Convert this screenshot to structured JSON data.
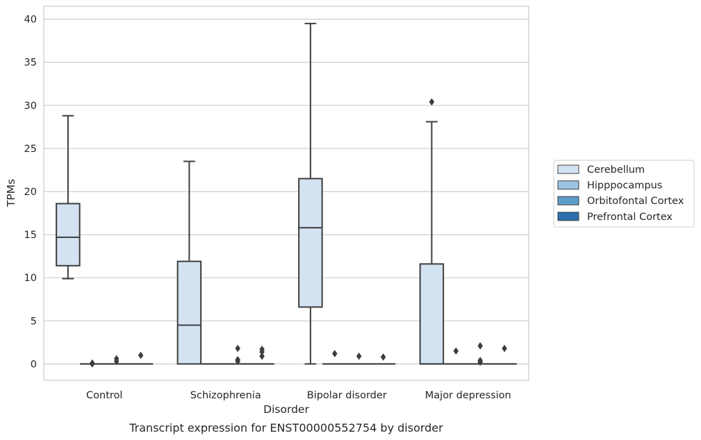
{
  "chart_data": {
    "type": "box",
    "caption": "Transcript expression for ENST00000552754 by disorder",
    "xlabel": "Disorder",
    "ylabel": "TPMs",
    "ylim": [
      -1.9,
      41.5
    ],
    "yticks": [
      0,
      5,
      10,
      15,
      20,
      25,
      30,
      35,
      40
    ],
    "grid": true,
    "legend_position": "right, outside plot",
    "categories": [
      "Control",
      "Schizophrenia",
      "Bipolar disorder",
      "Major depression"
    ],
    "series": [
      {
        "name": "Cerebellum",
        "color": "#d4e3f1",
        "boxes": [
          {
            "whislo": 9.9,
            "q1": 11.4,
            "med": 14.7,
            "q3": 18.6,
            "whishi": 28.8,
            "fliers": []
          },
          {
            "whislo": 0.0,
            "q1": 0.0,
            "med": 4.5,
            "q3": 11.9,
            "whishi": 23.5,
            "fliers": []
          },
          {
            "whislo": 0.0,
            "q1": 6.6,
            "med": 15.8,
            "q3": 21.5,
            "whishi": 39.5,
            "fliers": []
          },
          {
            "whislo": 0.0,
            "q1": 0.0,
            "med": 0.0,
            "q3": 11.6,
            "whishi": 28.1,
            "fliers": [
              30.4
            ]
          }
        ]
      },
      {
        "name": "Hipppocampus",
        "color": "#9dc3e0",
        "boxes": [
          {
            "whislo": 0,
            "q1": 0,
            "med": 0,
            "q3": 0,
            "whishi": 0,
            "fliers": [
              0.0,
              0.1
            ]
          },
          {
            "whislo": 0,
            "q1": 0,
            "med": 0,
            "q3": 0,
            "whishi": 0,
            "fliers": []
          },
          {
            "whislo": 0,
            "q1": 0,
            "med": 0,
            "q3": 0,
            "whishi": 0,
            "fliers": [
              1.2
            ]
          },
          {
            "whislo": 0,
            "q1": 0,
            "med": 0,
            "q3": 0,
            "whishi": 0,
            "fliers": [
              1.5
            ]
          }
        ]
      },
      {
        "name": "Orbitofontal Cortex",
        "color": "#5d9dca",
        "boxes": [
          {
            "whislo": 0,
            "q1": 0,
            "med": 0,
            "q3": 0,
            "whishi": 0,
            "fliers": [
              0.3,
              0.6
            ]
          },
          {
            "whislo": 0,
            "q1": 0,
            "med": 0,
            "q3": 0,
            "whishi": 0,
            "fliers": [
              0.3,
              0.5,
              1.8
            ]
          },
          {
            "whislo": 0,
            "q1": 0,
            "med": 0,
            "q3": 0,
            "whishi": 0,
            "fliers": [
              0.9
            ]
          },
          {
            "whislo": 0,
            "q1": 0,
            "med": 0,
            "q3": 0,
            "whishi": 0,
            "fliers": [
              0.2,
              0.4,
              2.1
            ]
          }
        ]
      },
      {
        "name": "Prefrontal Cortex",
        "color": "#2b6fae",
        "boxes": [
          {
            "whislo": 0,
            "q1": 0,
            "med": 0,
            "q3": 0,
            "whishi": 0,
            "fliers": [
              1.0
            ]
          },
          {
            "whislo": 0,
            "q1": 0,
            "med": 0,
            "q3": 0,
            "whishi": 0,
            "fliers": [
              0.9,
              1.4,
              1.7
            ]
          },
          {
            "whislo": 0,
            "q1": 0,
            "med": 0,
            "q3": 0,
            "whishi": 0,
            "fliers": [
              0.8
            ]
          },
          {
            "whislo": 0,
            "q1": 0,
            "med": 0,
            "q3": 0,
            "whishi": 0,
            "fliers": [
              1.8
            ]
          }
        ]
      }
    ]
  }
}
